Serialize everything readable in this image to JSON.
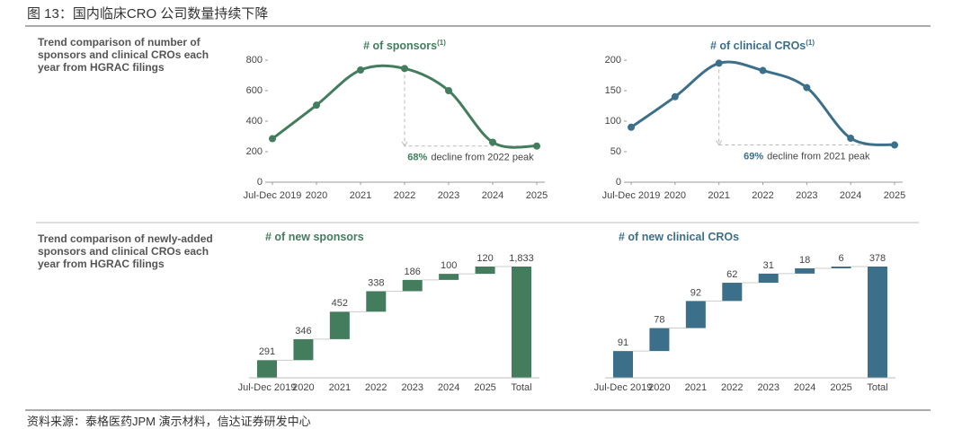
{
  "title": "图 13：国内临床CRO 公司数量持续下降",
  "source": "资料来源：泰格医药JPM 演示材料，信达证券研发中心",
  "row_labels": [
    "Trend comparison of number of sponsors and clinical CROs each year from HGRAC filings",
    "Trend comparison of newly-added sponsors and clinical CROs each year from HGRAC filings"
  ],
  "chart_data": [
    {
      "type": "line",
      "title": "# of sponsors",
      "title_note": "(1)",
      "categories": [
        "Jul-Dec 2019",
        "2020",
        "2021",
        "2022",
        "2023",
        "2024",
        "2025"
      ],
      "values": [
        285,
        505,
        735,
        745,
        600,
        262,
        237
      ],
      "color": "#437d5e",
      "ylim": [
        0,
        800
      ],
      "yticks": [
        0,
        200,
        400,
        600,
        800
      ],
      "annotation": {
        "highlight": "68%",
        "text": "decline from 2022 peak"
      }
    },
    {
      "type": "line",
      "title": "# of clinical CROs",
      "title_note": "(1)",
      "categories": [
        "Jul-Dec 2019",
        "2020",
        "2021",
        "2022",
        "2023",
        "2024",
        "2025"
      ],
      "values": [
        90,
        140,
        195,
        183,
        155,
        72,
        61
      ],
      "color": "#3c6f8a",
      "ylim": [
        0,
        200
      ],
      "yticks": [
        0,
        50,
        100,
        150,
        200
      ],
      "annotation": {
        "highlight": "69%",
        "text": "decline from 2021 peak"
      }
    },
    {
      "type": "waterfall",
      "title": "# of new sponsors",
      "last_is_total": true,
      "categories": [
        "Jul-Dec 2019",
        "2020",
        "2021",
        "2022",
        "2023",
        "2024",
        "2025",
        "Total"
      ],
      "values": [
        291,
        346,
        452,
        338,
        186,
        100,
        120,
        1833
      ],
      "value_labels": [
        "291",
        "346",
        "452",
        "338",
        "186",
        "100",
        "120",
        "1,833"
      ],
      "color": "#437d5e"
    },
    {
      "type": "waterfall",
      "title": "# of new clinical CROs",
      "last_is_total": true,
      "categories": [
        "Jul-Dec 2019",
        "2020",
        "2021",
        "2022",
        "2023",
        "2024",
        "2025",
        "Total"
      ],
      "values": [
        91,
        78,
        92,
        62,
        31,
        18,
        6,
        378
      ],
      "value_labels": [
        "91",
        "78",
        "92",
        "62",
        "31",
        "18",
        "6",
        "378"
      ],
      "color": "#3c6f8a"
    }
  ]
}
